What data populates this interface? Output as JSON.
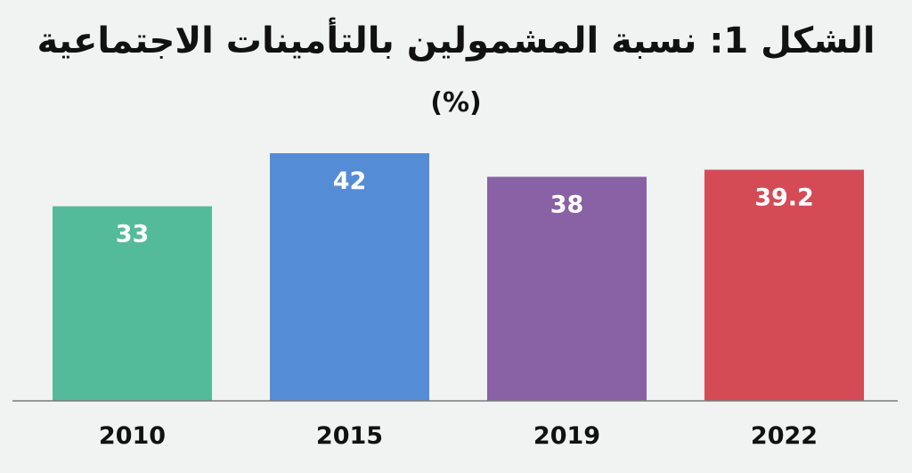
{
  "chart_data": {
    "type": "bar",
    "title": "الشكل 1: نسبة المشمولين بالتأمينات الاجتماعية",
    "subtitle": "(%)",
    "categories": [
      "2010",
      "2015",
      "2019",
      "2022"
    ],
    "values": [
      33,
      42,
      38,
      39.2
    ],
    "value_labels": [
      "33",
      "42",
      "38",
      "39.2"
    ],
    "colors": [
      "#54bb9a",
      "#548dd5",
      "#8862a4",
      "#d44b56"
    ],
    "ylim": [
      0,
      45
    ],
    "grid": false,
    "legend": "none",
    "xlabel": "",
    "ylabel": ""
  }
}
